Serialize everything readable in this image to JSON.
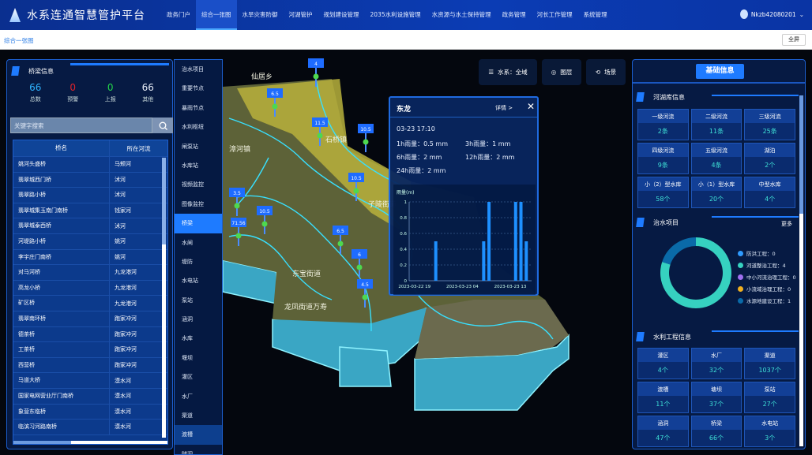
{
  "header": {
    "title": "水系连通智慧管护平台",
    "nav": [
      "政务门户",
      "综合一张图",
      "水旱灾害防御",
      "河湖管护",
      "规划建设管理",
      "2035水利设施管理",
      "水资源与水土保持管理",
      "政务管理",
      "河长工作管理",
      "系统管理"
    ],
    "active_nav": "综合一张图",
    "user": "Nkzb42080201"
  },
  "breadcrumb": {
    "current": "综合一张图",
    "fullscreen": "全屏"
  },
  "left": {
    "title": "桥梁信息",
    "stats": [
      {
        "value": "66",
        "label": "总数",
        "color": "#2fb4ff"
      },
      {
        "value": "0",
        "label": "预警",
        "color": "#e0222a"
      },
      {
        "value": "0",
        "label": "上报",
        "color": "#23d84a"
      },
      {
        "value": "66",
        "label": "其他",
        "color": "#e8eef8"
      }
    ],
    "search_placeholder": "关键字搜索",
    "columns": [
      "桥名",
      "所在河流"
    ],
    "rows": [
      [
        "姚河头盛桥",
        "马颊河"
      ],
      [
        "翡翠城西门桥",
        "沭河"
      ],
      [
        "翡翠路小桥",
        "沭河"
      ],
      [
        "翡翠城集玉南门南桥",
        "钱家河"
      ],
      [
        "翡翠城泰西桥",
        "沭河"
      ],
      [
        "河堤路小桥",
        "姚河"
      ],
      [
        "李宇庄门南桥",
        "姚河"
      ],
      [
        "对马河桥",
        "九龙港河"
      ],
      [
        "高龙小桥",
        "九龙港河"
      ],
      [
        "矿区桥",
        "九龙港河"
      ],
      [
        "翡翠南环桥",
        "跑家冲河"
      ],
      [
        "德茶桥",
        "跑家冲河"
      ],
      [
        "工茶桥",
        "跑家冲河"
      ],
      [
        "西营桥",
        "跑家冲河"
      ],
      [
        "马道大桥",
        "漠水河"
      ],
      [
        "国家电网营业厅门南桥",
        "漠水河"
      ],
      [
        "象营东临桥",
        "漠水河"
      ],
      [
        "临滨习河路南桥",
        "漠水河"
      ]
    ]
  },
  "sidenav": {
    "items": [
      "治水项目",
      "重要节点",
      "暴雨节点",
      "水利枢纽",
      "闸泵站",
      "水库站",
      "视频监控",
      "图像监控",
      "桥梁",
      "水闸",
      "堤防",
      "水电站",
      "泵站",
      "涵洞",
      "水库",
      "堰坝",
      "灌区",
      "水厂",
      "渠道",
      "渡槽",
      "隧洞"
    ],
    "active": "桥梁"
  },
  "toolbar": {
    "water_system": "水系：全域",
    "layers": "图层",
    "scene": "场景"
  },
  "map": {
    "place_labels": [
      "仙居乡",
      "石桥镇",
      "子陵街道",
      "龙凤街道万寿",
      "东宝街道",
      "漳河镇"
    ],
    "markers": [
      "4",
      "6.5",
      "11.5",
      "10.5",
      "10.5",
      "10.5",
      "6.5",
      "6",
      "4.5",
      "3.5",
      "71.56"
    ]
  },
  "popup": {
    "title": "东龙",
    "detail": "详情 >",
    "close": "✕",
    "time": "03-23 17:10",
    "r1h": "1h雨量：0.5 mm",
    "r3h": "3h雨量：1 mm",
    "r6h": "6h雨量：2 mm",
    "r12h": "12h雨量：2 mm",
    "r24h": "24h雨量：2 mm"
  },
  "chart_data": {
    "type": "bar",
    "ylabel": "雨量(m)",
    "ylim": [
      0,
      1
    ],
    "yticks": [
      "0",
      "0.2",
      "0.4",
      "0.6",
      "0.8",
      "1"
    ],
    "xlim": [
      "2023-03-22 18",
      "2023-03-23 17"
    ],
    "xticks": [
      "2023-03-22 19",
      "2023-03-23 04",
      "2023-03-23 13"
    ],
    "x": [
      "2023-03-22 23",
      "2023-03-23 08",
      "2023-03-23 09",
      "2023-03-23 14",
      "2023-03-23 15",
      "2023-03-23 16"
    ],
    "values": [
      0.5,
      0.5,
      1,
      1,
      1,
      0.5
    ],
    "color": "#1e90ff",
    "grid": true
  },
  "right": {
    "title": "基础信息",
    "rivers": {
      "title": "河湖库信息",
      "cells": [
        {
          "label": "一级河流",
          "value": "2条"
        },
        {
          "label": "二级河流",
          "value": "11条"
        },
        {
          "label": "三级河流",
          "value": "25条"
        },
        {
          "label": "四级河流",
          "value": "9条"
        },
        {
          "label": "五级河流",
          "value": "4条"
        },
        {
          "label": "湖泊",
          "value": "2个"
        },
        {
          "label": "小（2）型水库",
          "value": "58个"
        },
        {
          "label": "小（1）型水库",
          "value": "20个"
        },
        {
          "label": "中型水库",
          "value": "4个"
        }
      ]
    },
    "projects": {
      "title": "治水项目",
      "more": "更多",
      "items": [
        {
          "label": "防洪工程：0",
          "value": 0,
          "color": "#2f9bff"
        },
        {
          "label": "河道整治工程：4",
          "value": 4,
          "color": "#36d1c0"
        },
        {
          "label": "中小河流治理工程：0",
          "value": 0,
          "color": "#a070f0"
        },
        {
          "label": "小流域治理工程：0",
          "value": 0,
          "color": "#f0b020"
        },
        {
          "label": "水源地建设工程：1",
          "value": 1,
          "color": "#0a6aa8"
        }
      ]
    },
    "works": {
      "title": "水利工程信息",
      "cells": [
        {
          "label": "灌区",
          "value": "4个"
        },
        {
          "label": "水厂",
          "value": "32个"
        },
        {
          "label": "渠道",
          "value": "1037个"
        },
        {
          "label": "渡槽",
          "value": "11个"
        },
        {
          "label": "塘坝",
          "value": "37个"
        },
        {
          "label": "泵站",
          "value": "27个"
        },
        {
          "label": "涵洞",
          "value": "47个"
        },
        {
          "label": "桥梁",
          "value": "66个"
        },
        {
          "label": "水电站",
          "value": "3个"
        }
      ]
    }
  }
}
